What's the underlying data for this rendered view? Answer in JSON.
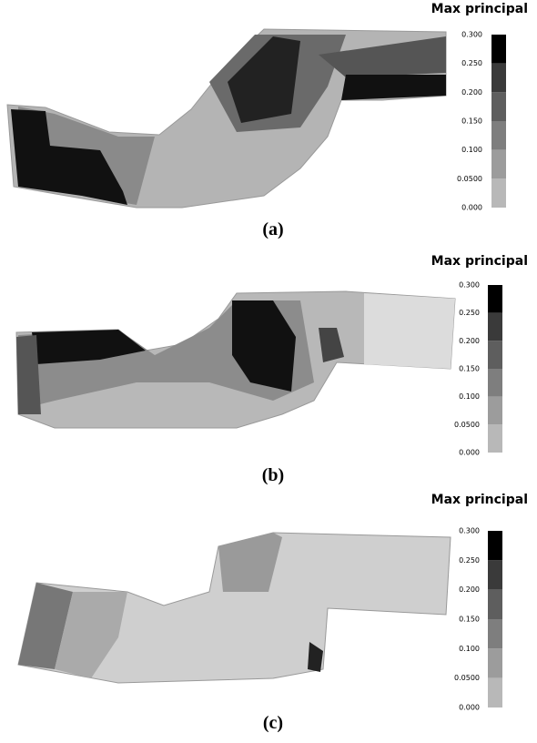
{
  "panels": [
    {
      "title": "Max principal",
      "ticks": [
        "0.300",
        "0.250",
        "0.200",
        "0.150",
        "0.100",
        "0.0500",
        "0.000"
      ],
      "caption": "(a)"
    },
    {
      "title": "Max principal",
      "ticks": [
        "0.300",
        "0.250",
        "0.200",
        "0.150",
        "0.100",
        "0.0500",
        "0.000"
      ],
      "caption": "(b)"
    },
    {
      "title": "Max principal",
      "ticks": [
        "0.300",
        "0.250",
        "0.200",
        "0.150",
        "0.100",
        "0.0500",
        "0.000"
      ],
      "caption": "(c)"
    }
  ]
}
